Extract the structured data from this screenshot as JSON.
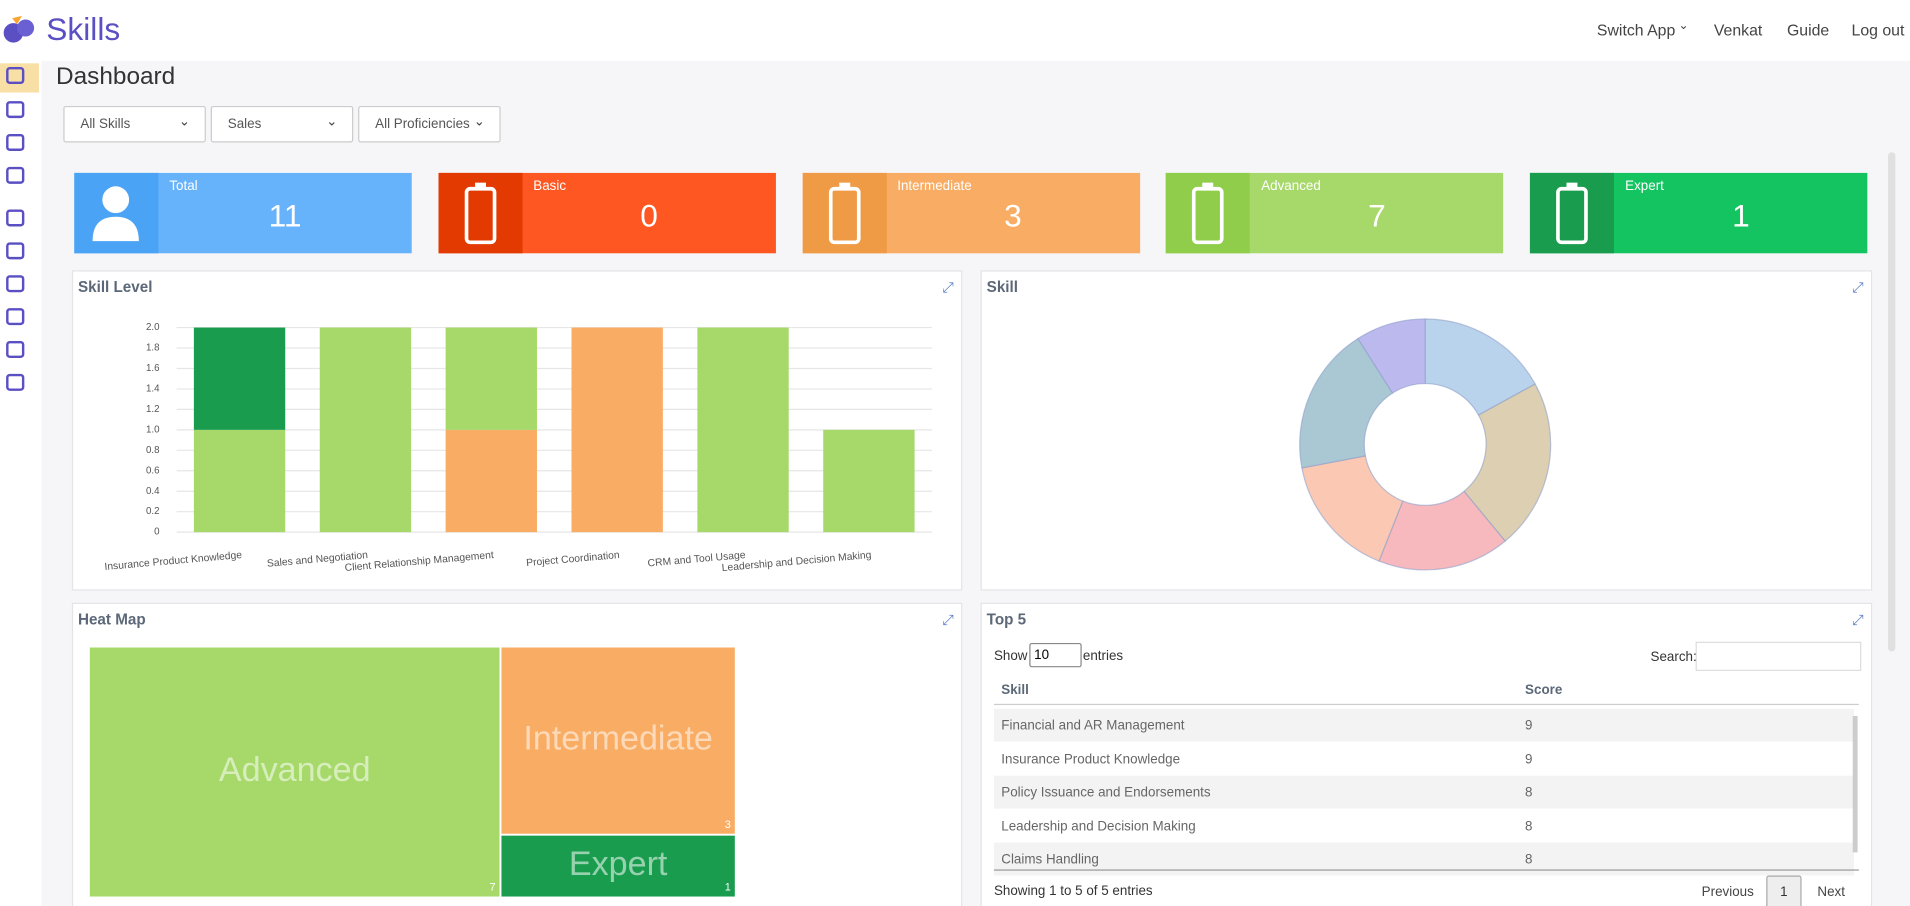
{
  "header": {
    "app_name": "Skills",
    "menu": [
      "Switch App",
      "Venkat",
      "Guide",
      "Log out"
    ]
  },
  "page_title": "Dashboard",
  "filters": [
    "All Skills",
    "Sales",
    "All Proficiencies"
  ],
  "cards": [
    {
      "label": "Total",
      "value": 11,
      "color": "#66b2fb",
      "icon_color": "#4aa3f5"
    },
    {
      "label": "Basic",
      "value": 0,
      "color": "#ff5722",
      "icon_color": "#e23a00"
    },
    {
      "label": "Intermediate",
      "value": 3,
      "color": "#f9ac63",
      "icon_color": "#ef9a45"
    },
    {
      "label": "Advanced",
      "value": 7,
      "color": "#a6d96a",
      "icon_color": "#8fcd4a"
    },
    {
      "label": "Expert",
      "value": 1,
      "color": "#14c460",
      "icon_color": "#1a9c4f"
    }
  ],
  "skill_level_chart": {
    "type": "bar",
    "title": "Skill Level",
    "stacked": true,
    "categories": [
      "Insurance Product Knowledge",
      "Sales and Negotiation",
      "Client Relationship Management",
      "Project Coordination",
      "CRM and Tool Usage",
      "Leadership and Decision Making"
    ],
    "series": [
      {
        "color": "#f9ac63",
        "values": [
          0,
          0,
          1,
          2,
          0,
          0
        ]
      },
      {
        "color": "#a6d96a",
        "values": [
          1,
          2,
          1,
          0,
          2,
          1
        ]
      },
      {
        "color": "#1a9c4f",
        "values": [
          1,
          0,
          0,
          0,
          0,
          0
        ]
      }
    ],
    "ylim": [
      0,
      2
    ],
    "yticks": [
      0,
      0.2,
      0.4,
      0.6,
      0.8,
      {
        "value": 1,
        "label": "1.0"
      },
      1.2,
      1.4,
      1.6,
      1.8,
      {
        "value": 2,
        "label": "2.0"
      }
    ],
    "grid": true
  },
  "skill_chart": {
    "type": "donut",
    "title": "Skill",
    "values": [
      17,
      22,
      17,
      16,
      19,
      9
    ],
    "colors": [
      "#b9d3ec",
      "#ddcfb1",
      "#f7b8be",
      "#fbc8b4",
      "#a9c8d4",
      "#bcb9ee"
    ]
  },
  "heat_map": {
    "type": "treemap",
    "title": "Heat Map",
    "categories": [
      "Advanced",
      "Intermediate",
      "Expert"
    ],
    "values": [
      7,
      3,
      1
    ],
    "colors": [
      "#a6d96a",
      "#f9ac63",
      "#1a9c4f"
    ]
  },
  "top5": {
    "title": "Top 5",
    "show_label": "Show",
    "page_size": 10,
    "entries_label": "entries",
    "search_label": "Search:",
    "columns": [
      "Skill",
      "Score"
    ],
    "rows": [
      [
        "Financial and AR Management",
        9
      ],
      [
        "Insurance Product Knowledge",
        9
      ],
      [
        "Policy Issuance and Endorsements",
        8
      ],
      [
        "Leadership and Decision Making",
        8
      ],
      [
        "Claims Handling",
        8
      ]
    ],
    "info": "Showing 1 to 5 of 5 entries",
    "pagination": [
      "Previous",
      1,
      "Next"
    ]
  }
}
